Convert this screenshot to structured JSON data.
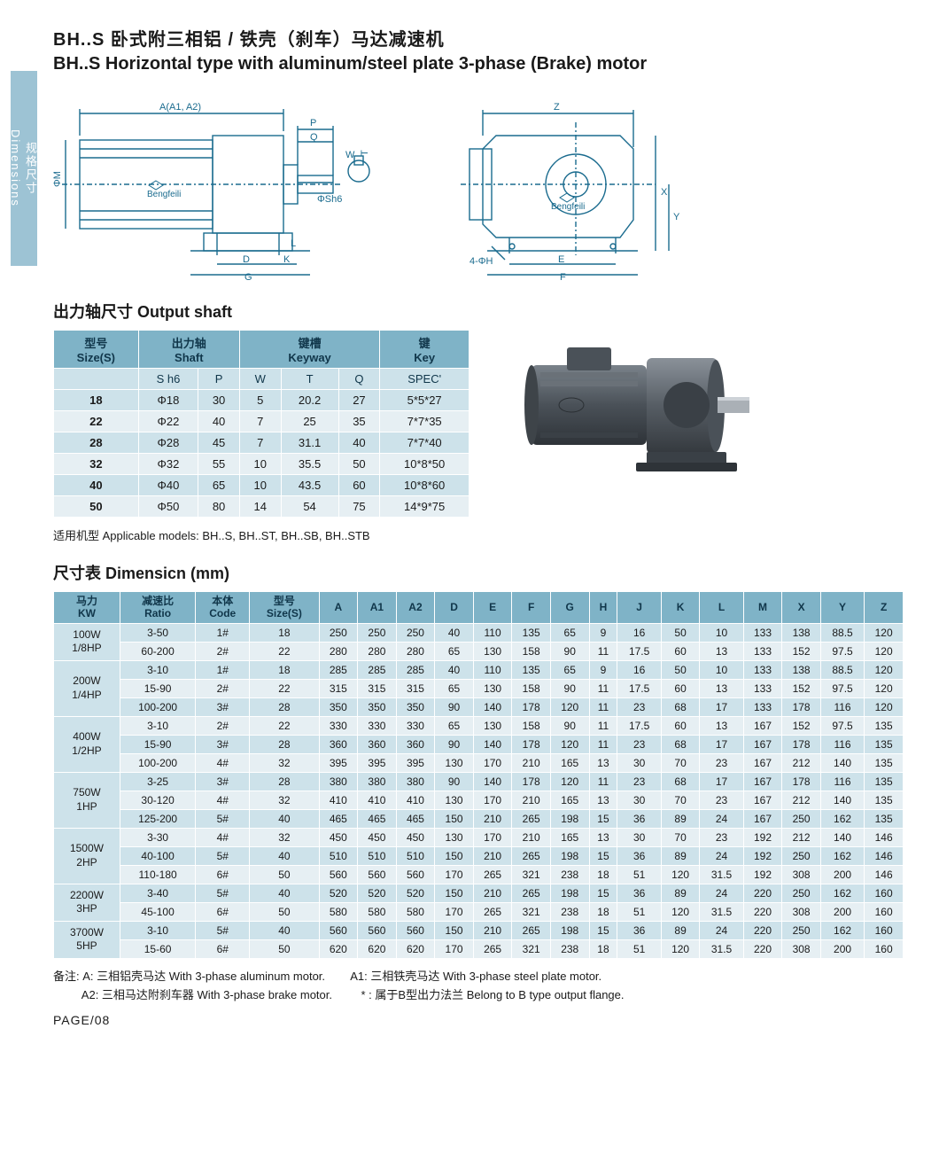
{
  "sideTab": {
    "cn": "规格尺寸",
    "en": "Dimensions"
  },
  "title": {
    "cn": "BH..S 卧式附三相铝 / 铁壳（刹车）马达减速机",
    "en": "BH..S Horizontal type with aluminum/steel plate 3-phase (Brake) motor"
  },
  "diagramLabels": {
    "left": {
      "A": "A(A1, A2)",
      "P": "P",
      "Q": "Q",
      "M": "ΦM",
      "Sh6": "ΦSh6",
      "W": "W",
      "T": "T",
      "L": "L",
      "D": "D",
      "K": "K",
      "G": "G",
      "logo": "Bengfeili"
    },
    "right": {
      "Z": "Z",
      "X": "X",
      "Y": "Y",
      "H": "4-ΦH",
      "E": "E",
      "F": "F",
      "logo": "Bengfeili"
    }
  },
  "shaft": {
    "heading": "出力轴尺寸 Output shaft",
    "headers1": [
      {
        "label": "型号\nSize(S)",
        "span": 1
      },
      {
        "label": "出力轴\nShaft",
        "span": 2
      },
      {
        "label": "键槽\nKeyway",
        "span": 3
      },
      {
        "label": "键\nKey",
        "span": 1
      }
    ],
    "headers2": [
      "",
      "S h6",
      "P",
      "W",
      "T",
      "Q",
      "SPEC'"
    ],
    "rows": [
      [
        "18",
        "Φ18",
        "30",
        "5",
        "20.2",
        "27",
        "5*5*27"
      ],
      [
        "22",
        "Φ22",
        "40",
        "7",
        "25",
        "35",
        "7*7*35"
      ],
      [
        "28",
        "Φ28",
        "45",
        "7",
        "31.1",
        "40",
        "7*7*40"
      ],
      [
        "32",
        "Φ32",
        "55",
        "10",
        "35.5",
        "50",
        "10*8*50"
      ],
      [
        "40",
        "Φ40",
        "65",
        "10",
        "43.5",
        "60",
        "10*8*60"
      ],
      [
        "50",
        "Φ50",
        "80",
        "14",
        "54",
        "75",
        "14*9*75"
      ]
    ]
  },
  "applicable": "适用机型 Applicable models: BH..S, BH..ST, BH..SB, BH..STB",
  "motorPhoto": {
    "bodyColor": "#5a6268",
    "darkColor": "#3e4449",
    "shaftColor": "#9aa0a5"
  },
  "dims": {
    "heading": "尺寸表 Dimensicn (mm)",
    "headers": [
      "马力\nKW",
      "减速比\nRatio",
      "本体\nCode",
      "型号\nSize(S)",
      "A",
      "A1",
      "A2",
      "D",
      "E",
      "F",
      "G",
      "H",
      "J",
      "K",
      "L",
      "M",
      "X",
      "Y",
      "Z"
    ],
    "groups": [
      {
        "kw": "100W\n1/8HP",
        "rows": [
          [
            "3-50",
            "1#",
            "18",
            "250",
            "250",
            "250",
            "40",
            "110",
            "135",
            "65",
            "9",
            "16",
            "50",
            "10",
            "133",
            "138",
            "88.5",
            "120"
          ],
          [
            "60-200",
            "2#",
            "22",
            "280",
            "280",
            "280",
            "65",
            "130",
            "158",
            "90",
            "11",
            "17.5",
            "60",
            "13",
            "133",
            "152",
            "97.5",
            "120"
          ]
        ]
      },
      {
        "kw": "200W\n1/4HP",
        "rows": [
          [
            "3-10",
            "1#",
            "18",
            "285",
            "285",
            "285",
            "40",
            "110",
            "135",
            "65",
            "9",
            "16",
            "50",
            "10",
            "133",
            "138",
            "88.5",
            "120"
          ],
          [
            "15-90",
            "2#",
            "22",
            "315",
            "315",
            "315",
            "65",
            "130",
            "158",
            "90",
            "11",
            "17.5",
            "60",
            "13",
            "133",
            "152",
            "97.5",
            "120"
          ],
          [
            "100-200",
            "3#",
            "28",
            "350",
            "350",
            "350",
            "90",
            "140",
            "178",
            "120",
            "11",
            "23",
            "68",
            "17",
            "133",
            "178",
            "116",
            "120"
          ]
        ]
      },
      {
        "kw": "400W\n1/2HP",
        "rows": [
          [
            "3-10",
            "2#",
            "22",
            "330",
            "330",
            "330",
            "65",
            "130",
            "158",
            "90",
            "11",
            "17.5",
            "60",
            "13",
            "167",
            "152",
            "97.5",
            "135"
          ],
          [
            "15-90",
            "3#",
            "28",
            "360",
            "360",
            "360",
            "90",
            "140",
            "178",
            "120",
            "11",
            "23",
            "68",
            "17",
            "167",
            "178",
            "116",
            "135"
          ],
          [
            "100-200",
            "4#",
            "32",
            "395",
            "395",
            "395",
            "130",
            "170",
            "210",
            "165",
            "13",
            "30",
            "70",
            "23",
            "167",
            "212",
            "140",
            "135"
          ]
        ]
      },
      {
        "kw": "750W\n1HP",
        "rows": [
          [
            "3-25",
            "3#",
            "28",
            "380",
            "380",
            "380",
            "90",
            "140",
            "178",
            "120",
            "11",
            "23",
            "68",
            "17",
            "167",
            "178",
            "116",
            "135"
          ],
          [
            "30-120",
            "4#",
            "32",
            "410",
            "410",
            "410",
            "130",
            "170",
            "210",
            "165",
            "13",
            "30",
            "70",
            "23",
            "167",
            "212",
            "140",
            "135"
          ],
          [
            "125-200",
            "5#",
            "40",
            "465",
            "465",
            "465",
            "150",
            "210",
            "265",
            "198",
            "15",
            "36",
            "89",
            "24",
            "167",
            "250",
            "162",
            "135"
          ]
        ]
      },
      {
        "kw": "1500W\n2HP",
        "rows": [
          [
            "3-30",
            "4#",
            "32",
            "450",
            "450",
            "450",
            "130",
            "170",
            "210",
            "165",
            "13",
            "30",
            "70",
            "23",
            "192",
            "212",
            "140",
            "146"
          ],
          [
            "40-100",
            "5#",
            "40",
            "510",
            "510",
            "510",
            "150",
            "210",
            "265",
            "198",
            "15",
            "36",
            "89",
            "24",
            "192",
            "250",
            "162",
            "146"
          ],
          [
            "110-180",
            "6#",
            "50",
            "560",
            "560",
            "560",
            "170",
            "265",
            "321",
            "238",
            "18",
            "51",
            "120",
            "31.5",
            "192",
            "308",
            "200",
            "146"
          ]
        ]
      },
      {
        "kw": "2200W\n3HP",
        "rows": [
          [
            "3-40",
            "5#",
            "40",
            "520",
            "520",
            "520",
            "150",
            "210",
            "265",
            "198",
            "15",
            "36",
            "89",
            "24",
            "220",
            "250",
            "162",
            "160"
          ],
          [
            "45-100",
            "6#",
            "50",
            "580",
            "580",
            "580",
            "170",
            "265",
            "321",
            "238",
            "18",
            "51",
            "120",
            "31.5",
            "220",
            "308",
            "200",
            "160"
          ]
        ]
      },
      {
        "kw": "3700W\n5HP",
        "rows": [
          [
            "3-10",
            "5#",
            "40",
            "560",
            "560",
            "560",
            "150",
            "210",
            "265",
            "198",
            "15",
            "36",
            "89",
            "24",
            "220",
            "250",
            "162",
            "160"
          ],
          [
            "15-60",
            "6#",
            "50",
            "620",
            "620",
            "620",
            "170",
            "265",
            "321",
            "238",
            "18",
            "51",
            "120",
            "31.5",
            "220",
            "308",
            "200",
            "160"
          ]
        ]
      }
    ]
  },
  "footnote": {
    "line1a": "备注: A: 三相铝壳马达 With 3-phase aluminum motor.",
    "line1b": "A1: 三相铁壳马达 With 3-phase steel plate motor.",
    "line2a": "A2: 三相马达附刹车器 With 3-phase brake motor.",
    "line2b": "* : 属于B型出力法兰 Belong to B type output flange."
  },
  "pageNum": "PAGE/08"
}
